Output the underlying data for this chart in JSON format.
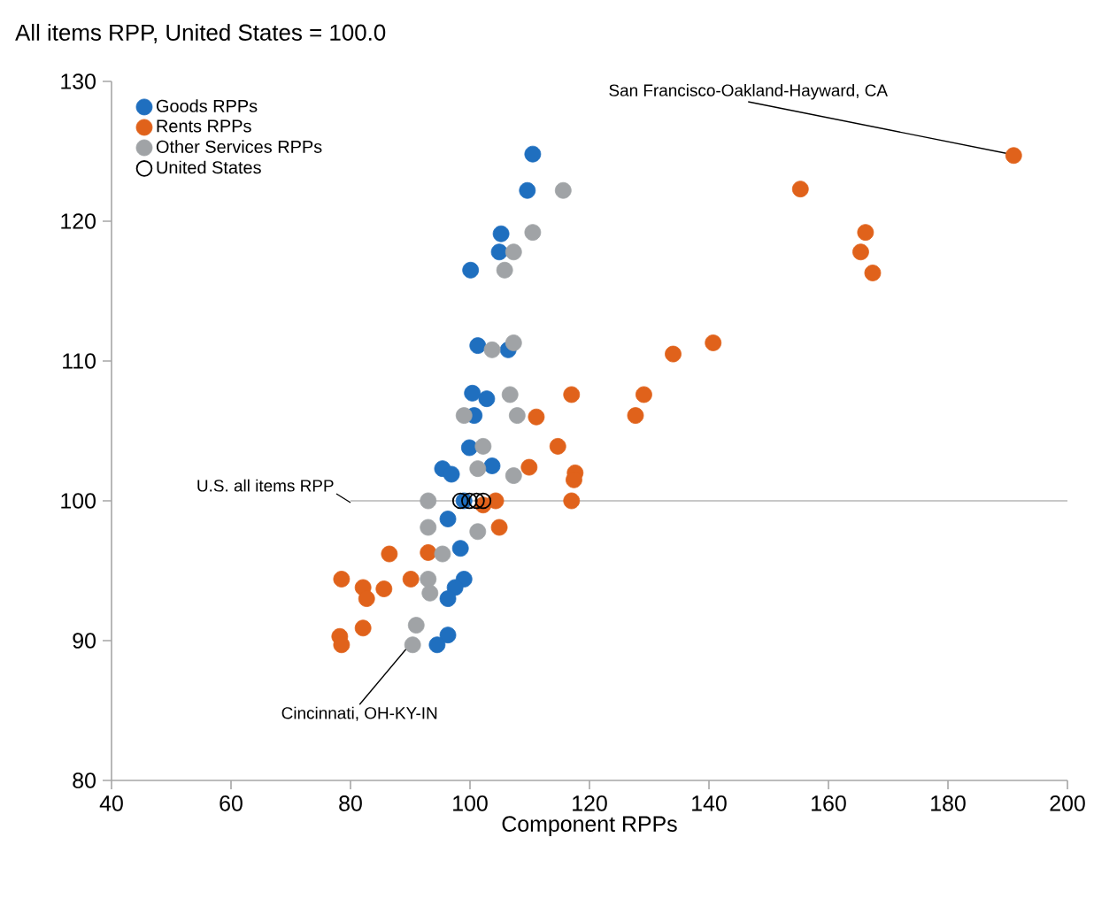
{
  "chart_data": {
    "type": "scatter",
    "title": "All items RPP, United States = 100.0",
    "xlabel": "Component RPPs",
    "xlim": [
      40,
      200
    ],
    "ylim": [
      80,
      130
    ],
    "xticks": [
      40,
      60,
      80,
      100,
      120,
      140,
      160,
      180,
      200
    ],
    "yticks": [
      80,
      90,
      100,
      110,
      120,
      130
    ],
    "grid": false,
    "legend": "top left",
    "marker": "circle",
    "ref_lines": [
      {
        "axis": "y",
        "value": 100,
        "label": "U.S. all items RPP",
        "color": "#c8c8c8"
      }
    ],
    "annotations": [
      {
        "text": "San Francisco-Oakland-Hayward, CA",
        "x": 191,
        "y": 124.7
      },
      {
        "text": "Cincinnati, OH-KY-IN",
        "x": 90.4,
        "y": 89.7
      }
    ],
    "series": [
      {
        "name": "Goods RPPs",
        "color": "#1f6fbf",
        "x": [
          110.5,
          109.6,
          105.2,
          104.9,
          100.1,
          101.3,
          106.4,
          100.4,
          102.8,
          100.7,
          99.9,
          95.4,
          103.7,
          96.9,
          99,
          96.3,
          98.4,
          99,
          97.5,
          96.3,
          96.3,
          94.5
        ],
        "values": [
          124.8,
          122.2,
          119.1,
          117.8,
          116.5,
          111.1,
          110.8,
          107.7,
          107.3,
          106.1,
          103.8,
          102.3,
          102.5,
          101.9,
          100,
          98.7,
          96.6,
          94.4,
          93.8,
          93,
          90.4,
          89.7
        ]
      },
      {
        "name": "Rents RPPs",
        "color": "#e0621b",
        "x": [
          191,
          155.3,
          166.2,
          165.4,
          167.4,
          140.7,
          134,
          129.1,
          127.7,
          117,
          111.1,
          114.7,
          117.6,
          117.4,
          117,
          109.9,
          104.9,
          104.3,
          102.2,
          78.2,
          78.5,
          82.1,
          78.5,
          82.1,
          82.7,
          85.6,
          86.5,
          90.1,
          93
        ],
        "values": [
          124.7,
          122.3,
          119.2,
          117.8,
          116.3,
          111.3,
          110.5,
          107.6,
          106.1,
          107.6,
          106,
          103.9,
          102,
          101.5,
          100,
          102.4,
          98.1,
          100,
          99.7,
          90.3,
          89.7,
          90.9,
          94.4,
          93.8,
          93,
          93.7,
          96.2,
          94.4,
          96.3
        ]
      },
      {
        "name": "Other Services RPPs",
        "color": "#a0a3a6",
        "x": [
          115.6,
          110.5,
          107.3,
          105.8,
          107.3,
          106.7,
          107.9,
          107.3,
          103.7,
          99,
          102.2,
          93,
          101.3,
          93,
          101.3,
          93,
          93.3,
          91,
          90.4,
          95.4
        ],
        "values": [
          122.2,
          119.2,
          117.8,
          116.5,
          111.3,
          107.6,
          106.1,
          101.8,
          110.8,
          106.1,
          103.9,
          100,
          102.3,
          98.1,
          97.8,
          94.4,
          93.4,
          91.1,
          89.7,
          96.2
        ]
      },
      {
        "name": "United States",
        "color": "#000000",
        "marker": "open circle",
        "x": [
          98.4,
          99.9,
          101.1,
          102.2
        ],
        "values": [
          100,
          100,
          100,
          100
        ]
      }
    ]
  }
}
